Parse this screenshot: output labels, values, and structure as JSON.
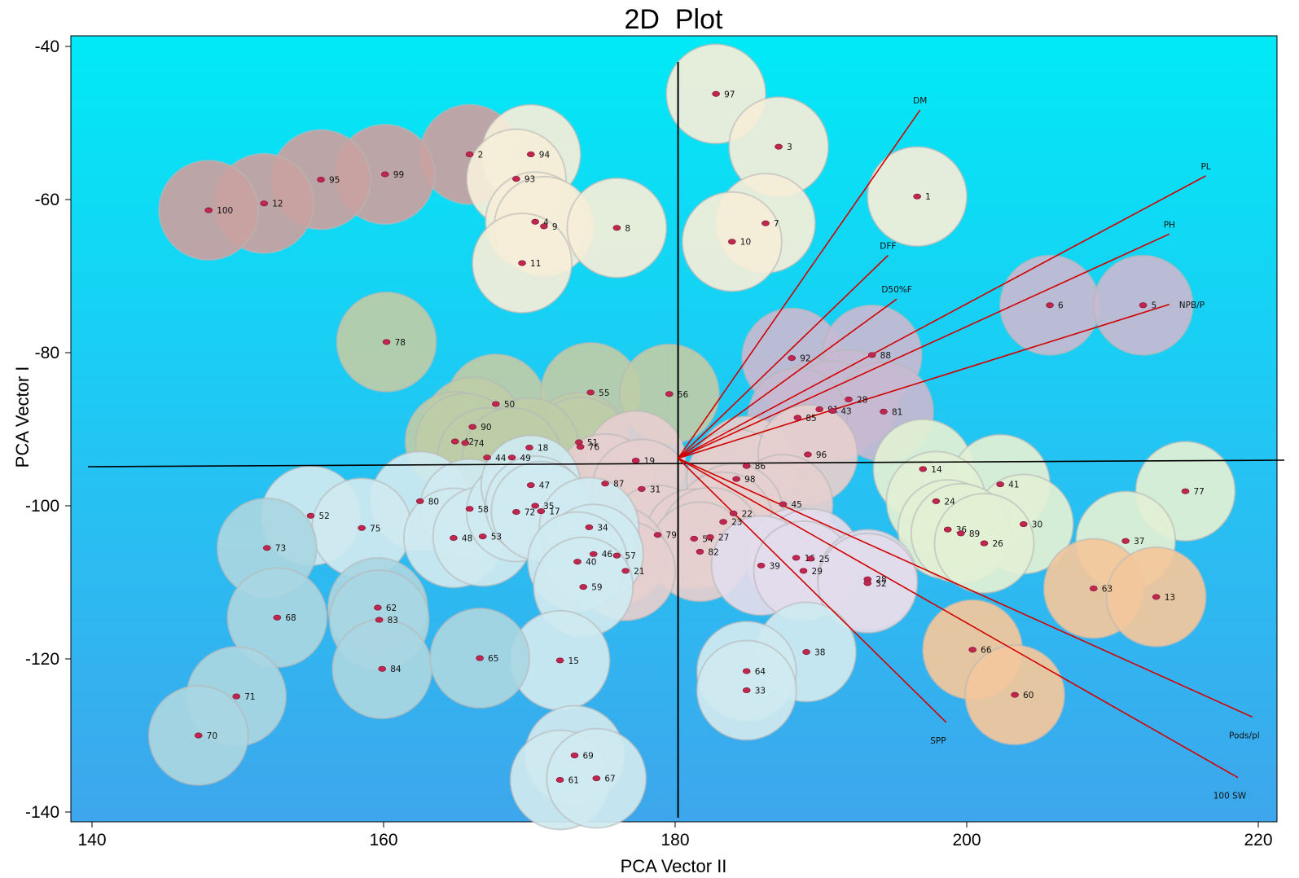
{
  "chart_data": {
    "type": "scatter",
    "title": "2D  Plot",
    "xlabel": "PCA Vector II",
    "ylabel": "PCA Vector I",
    "xlim": [
      139.5,
      220.5
    ],
    "ylim": [
      -140,
      -39.5
    ],
    "xticks": [
      "140",
      "160",
      "180",
      "200",
      "220"
    ],
    "yticks": [
      "-40",
      "-60",
      "-80",
      "-100",
      "-120",
      "-140"
    ],
    "axes_lines": {
      "vertical_x": 180.2,
      "horizontal_y": -94
    },
    "vector_origin": [
      180.2,
      -93.8
    ],
    "vectors": [
      {
        "name": "DM",
        "x": 196.8,
        "y": -48.3
      },
      {
        "name": "PL",
        "x": 216.4,
        "y": -56.9
      },
      {
        "name": "PH",
        "x": 213.9,
        "y": -64.5
      },
      {
        "name": "DFF",
        "x": 194.6,
        "y": -67.3
      },
      {
        "name": "D50%F",
        "x": 195.2,
        "y": -73.0
      },
      {
        "name": "NPB/P",
        "x": 213.9,
        "y": -73.7
      },
      {
        "name": "SPP",
        "x": 198.6,
        "y": -128.3
      },
      {
        "name": "Pods/pl",
        "x": 219.6,
        "y": -127.6
      },
      {
        "name": "100 SW",
        "x": 218.6,
        "y": -135.5
      }
    ],
    "series": [
      {
        "color": "#c9a0a0",
        "points": [
          {
            "label": "2",
            "x": 165.9,
            "y": -54.1
          },
          {
            "label": "99",
            "x": 160.1,
            "y": -56.7
          },
          {
            "label": "95",
            "x": 155.7,
            "y": -57.4
          },
          {
            "label": "12",
            "x": 151.8,
            "y": -60.5
          },
          {
            "label": "100",
            "x": 148.0,
            "y": -61.4
          }
        ]
      },
      {
        "color": "#f5eed8",
        "points": [
          {
            "label": "94",
            "x": 170.1,
            "y": -54.1
          },
          {
            "label": "93",
            "x": 169.1,
            "y": -57.3
          },
          {
            "label": "4",
            "x": 170.4,
            "y": -62.9
          },
          {
            "label": "9",
            "x": 171.0,
            "y": -63.5
          },
          {
            "label": "8",
            "x": 176.0,
            "y": -63.7
          },
          {
            "label": "11",
            "x": 169.5,
            "y": -68.3
          },
          {
            "label": "97",
            "x": 182.8,
            "y": -46.2
          },
          {
            "label": "3",
            "x": 187.1,
            "y": -53.1
          },
          {
            "label": "1",
            "x": 196.6,
            "y": -59.6
          },
          {
            "label": "7",
            "x": 186.2,
            "y": -63.1
          },
          {
            "label": "10",
            "x": 183.9,
            "y": -65.5
          }
        ]
      },
      {
        "color": "#bccca8",
        "points": [
          {
            "label": "78",
            "x": 160.2,
            "y": -78.6
          },
          {
            "label": "50",
            "x": 167.7,
            "y": -86.7
          },
          {
            "label": "55",
            "x": 174.2,
            "y": -85.2
          },
          {
            "label": "56",
            "x": 179.6,
            "y": -85.4
          },
          {
            "label": "90",
            "x": 166.1,
            "y": -89.7
          },
          {
            "label": "42",
            "x": 164.9,
            "y": -91.6
          },
          {
            "label": "74",
            "x": 165.6,
            "y": -91.8
          },
          {
            "label": "51",
            "x": 173.4,
            "y": -91.7
          },
          {
            "label": "76",
            "x": 173.5,
            "y": -92.3
          },
          {
            "label": "18",
            "x": 170.0,
            "y": -92.4
          },
          {
            "label": "44",
            "x": 167.1,
            "y": -93.7
          },
          {
            "label": "49",
            "x": 168.8,
            "y": -93.7
          }
        ]
      },
      {
        "color": "#c7b9d2",
        "points": [
          {
            "label": "6",
            "x": 205.7,
            "y": -73.8
          },
          {
            "label": "5",
            "x": 212.1,
            "y": -73.8
          },
          {
            "label": "92",
            "x": 188.0,
            "y": -80.7
          },
          {
            "label": "88",
            "x": 193.5,
            "y": -80.3
          },
          {
            "label": "28",
            "x": 191.9,
            "y": -86.1
          },
          {
            "label": "91",
            "x": 189.9,
            "y": -87.4
          },
          {
            "label": "43",
            "x": 190.8,
            "y": -87.6
          },
          {
            "label": "81",
            "x": 194.3,
            "y": -87.7
          },
          {
            "label": "85",
            "x": 188.4,
            "y": -88.5
          }
        ]
      },
      {
        "color": "#e5cfcf",
        "points": [
          {
            "label": "19",
            "x": 177.3,
            "y": -94.1
          },
          {
            "label": "87",
            "x": 175.2,
            "y": -97.1
          },
          {
            "label": "31",
            "x": 177.7,
            "y": -97.8
          },
          {
            "label": "86",
            "x": 184.9,
            "y": -94.8
          },
          {
            "label": "98",
            "x": 184.2,
            "y": -96.5
          },
          {
            "label": "96",
            "x": 189.1,
            "y": -93.3
          },
          {
            "label": "45",
            "x": 187.4,
            "y": -99.8
          },
          {
            "label": "22",
            "x": 184.0,
            "y": -101.0
          },
          {
            "label": "23",
            "x": 183.3,
            "y": -102.1
          },
          {
            "label": "79",
            "x": 178.8,
            "y": -103.8
          },
          {
            "label": "54",
            "x": 181.3,
            "y": -104.3
          },
          {
            "label": "27",
            "x": 182.4,
            "y": -104.1
          },
          {
            "label": "82",
            "x": 181.7,
            "y": -106.0
          },
          {
            "label": "57",
            "x": 176.0,
            "y": -106.5
          },
          {
            "label": "21",
            "x": 176.6,
            "y": -108.5
          }
        ]
      },
      {
        "color": "#e2f0d4",
        "points": [
          {
            "label": "14",
            "x": 197.0,
            "y": -95.2
          },
          {
            "label": "41",
            "x": 202.3,
            "y": -97.2
          },
          {
            "label": "24",
            "x": 197.9,
            "y": -99.4
          },
          {
            "label": "30",
            "x": 203.9,
            "y": -102.4
          },
          {
            "label": "36",
            "x": 198.7,
            "y": -103.1
          },
          {
            "label": "89",
            "x": 199.6,
            "y": -103.6
          },
          {
            "label": "26",
            "x": 201.2,
            "y": -104.9
          },
          {
            "label": "77",
            "x": 215.0,
            "y": -98.1
          },
          {
            "label": "37",
            "x": 210.9,
            "y": -104.6
          }
        ]
      },
      {
        "color": "#e2dcec",
        "points": [
          {
            "label": "16",
            "x": 188.3,
            "y": -106.8
          },
          {
            "label": "25",
            "x": 189.3,
            "y": -106.9
          },
          {
            "label": "39",
            "x": 185.9,
            "y": -107.8
          },
          {
            "label": "29",
            "x": 188.8,
            "y": -108.5
          },
          {
            "label": "28",
            "x": 193.2,
            "y": -109.6
          },
          {
            "label": "32",
            "x": 193.2,
            "y": -110.1
          }
        ]
      },
      {
        "color": "#f3c79c",
        "points": [
          {
            "label": "63",
            "x": 208.7,
            "y": -110.8
          },
          {
            "label": "13",
            "x": 213.0,
            "y": -111.9
          },
          {
            "label": "66",
            "x": 200.4,
            "y": -118.8
          },
          {
            "label": "60",
            "x": 203.3,
            "y": -124.7
          }
        ]
      },
      {
        "color": "#cfeaf0",
        "points": [
          {
            "label": "80",
            "x": 162.5,
            "y": -99.4
          },
          {
            "label": "58",
            "x": 165.9,
            "y": -100.4
          },
          {
            "label": "52",
            "x": 155.0,
            "y": -101.3
          },
          {
            "label": "75",
            "x": 158.5,
            "y": -102.9
          },
          {
            "label": "48",
            "x": 164.8,
            "y": -104.2
          },
          {
            "label": "53",
            "x": 166.8,
            "y": -104.0
          },
          {
            "label": "72",
            "x": 169.1,
            "y": -100.8
          },
          {
            "label": "47",
            "x": 170.1,
            "y": -97.3
          },
          {
            "label": "35",
            "x": 170.4,
            "y": -100.0
          },
          {
            "label": "17",
            "x": 170.8,
            "y": -100.7
          },
          {
            "label": "34",
            "x": 174.1,
            "y": -102.8
          },
          {
            "label": "46",
            "x": 174.4,
            "y": -106.3
          },
          {
            "label": "40",
            "x": 173.3,
            "y": -107.3
          },
          {
            "label": "59",
            "x": 173.7,
            "y": -110.6
          },
          {
            "label": "15",
            "x": 172.1,
            "y": -120.2
          },
          {
            "label": "38",
            "x": 189.0,
            "y": -119.1
          },
          {
            "label": "64",
            "x": 184.9,
            "y": -121.6
          },
          {
            "label": "33",
            "x": 184.9,
            "y": -124.1
          },
          {
            "label": "69",
            "x": 173.1,
            "y": -132.6
          },
          {
            "label": "61",
            "x": 172.1,
            "y": -135.8
          },
          {
            "label": "67",
            "x": 174.6,
            "y": -135.6
          }
        ]
      },
      {
        "color": "#a9d6e2",
        "points": [
          {
            "label": "73",
            "x": 152.0,
            "y": -105.5
          },
          {
            "label": "62",
            "x": 159.6,
            "y": -113.3
          },
          {
            "label": "83",
            "x": 159.7,
            "y": -114.9
          },
          {
            "label": "68",
            "x": 152.7,
            "y": -114.6
          },
          {
            "label": "84",
            "x": 159.9,
            "y": -121.3
          },
          {
            "label": "65",
            "x": 166.6,
            "y": -119.9
          },
          {
            "label": "71",
            "x": 149.9,
            "y": -124.9
          },
          {
            "label": "70",
            "x": 147.3,
            "y": -130.0
          }
        ]
      }
    ]
  }
}
